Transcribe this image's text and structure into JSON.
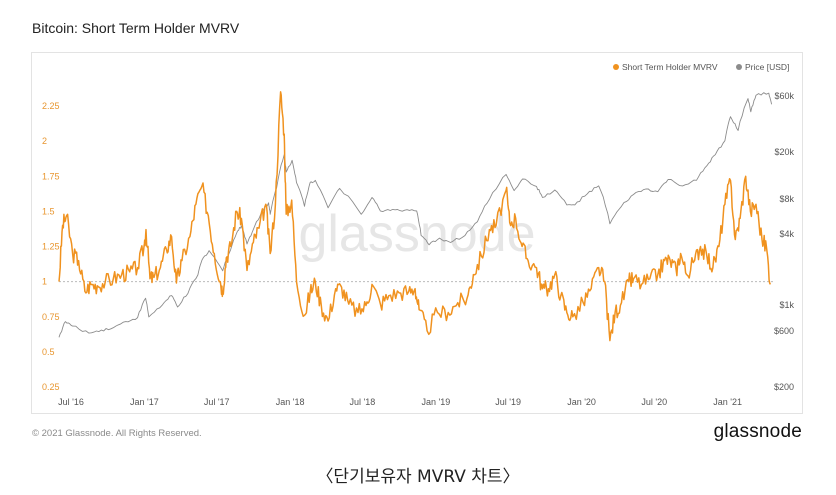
{
  "title": "Bitcoin: Short Term Holder MVRV",
  "footer": {
    "copyright": "© 2021 Glassnode. All Rights Reserved.",
    "brand": "glassnode"
  },
  "watermark": "glassnode",
  "caption": "〈단기보유자 MVRV 차트〉",
  "colors": {
    "mvrv": "#f0921f",
    "price": "#8c8c8c",
    "left_axis": "#e8962f",
    "grid": "#bbbbbb"
  },
  "chart_data": {
    "type": "line",
    "title": "Bitcoin: Short Term Holder MVRV",
    "legend_position": "top-right",
    "x_ticks": [
      "Jul '16",
      "Jan '17",
      "Jul '17",
      "Jan '18",
      "Jul '18",
      "Jan '19",
      "Jul '19",
      "Jan '20",
      "Jul '20",
      "Jan '21"
    ],
    "x_range": [
      "2016-06",
      "2021-04"
    ],
    "y_left": {
      "ticks": [
        "2.25",
        "2",
        "1.75",
        "1.5",
        "1.25",
        "1",
        "0.75",
        "0.5",
        "0.25"
      ],
      "range": [
        0.2,
        2.4
      ],
      "reference_line": 1
    },
    "y_right": {
      "scale": "log",
      "ticks": [
        "$60k",
        "$20k",
        "$8k",
        "$4k",
        "$1k",
        "$600",
        "$200"
      ]
    },
    "series": [
      {
        "name": "Short Term Holder MVRV",
        "axis": "left",
        "points": [
          [
            "2016-06-01",
            1.0
          ],
          [
            "2016-06-10",
            1.4
          ],
          [
            "2016-06-20",
            1.47
          ],
          [
            "2016-07-05",
            1.2
          ],
          [
            "2016-07-20",
            1.15
          ],
          [
            "2016-08-05",
            0.93
          ],
          [
            "2016-08-20",
            0.98
          ],
          [
            "2016-09-05",
            0.97
          ],
          [
            "2016-09-25",
            1.0
          ],
          [
            "2016-10-15",
            1.02
          ],
          [
            "2016-11-05",
            1.05
          ],
          [
            "2016-11-25",
            1.07
          ],
          [
            "2016-12-15",
            1.1
          ],
          [
            "2016-12-31",
            1.25
          ],
          [
            "2017-01-05",
            1.37
          ],
          [
            "2017-01-15",
            1.02
          ],
          [
            "2017-01-25",
            1.03
          ],
          [
            "2017-02-10",
            1.1
          ],
          [
            "2017-02-25",
            1.23
          ],
          [
            "2017-03-10",
            1.32
          ],
          [
            "2017-03-22",
            0.99
          ],
          [
            "2017-04-05",
            1.15
          ],
          [
            "2017-04-25",
            1.32
          ],
          [
            "2017-05-10",
            1.55
          ],
          [
            "2017-05-25",
            1.68
          ],
          [
            "2017-06-10",
            1.47
          ],
          [
            "2017-06-25",
            1.2
          ],
          [
            "2017-07-10",
            1.0
          ],
          [
            "2017-07-16",
            0.93
          ],
          [
            "2017-07-25",
            1.17
          ],
          [
            "2017-08-05",
            1.25
          ],
          [
            "2017-08-20",
            1.5
          ],
          [
            "2017-09-01",
            1.45
          ],
          [
            "2017-09-15",
            1.08
          ],
          [
            "2017-10-01",
            1.28
          ],
          [
            "2017-10-15",
            1.38
          ],
          [
            "2017-11-01",
            1.55
          ],
          [
            "2017-11-12",
            1.2
          ],
          [
            "2017-11-25",
            1.55
          ],
          [
            "2017-12-08",
            2.35
          ],
          [
            "2017-12-17",
            2.05
          ],
          [
            "2017-12-22",
            1.48
          ],
          [
            "2018-01-05",
            1.58
          ],
          [
            "2018-01-17",
            1.0
          ],
          [
            "2018-02-06",
            0.76
          ],
          [
            "2018-02-20",
            0.92
          ],
          [
            "2018-03-05",
            1.0
          ],
          [
            "2018-03-20",
            0.83
          ],
          [
            "2018-04-06",
            0.72
          ],
          [
            "2018-04-25",
            0.95
          ],
          [
            "2018-05-10",
            0.96
          ],
          [
            "2018-05-28",
            0.84
          ],
          [
            "2018-06-20",
            0.78
          ],
          [
            "2018-07-10",
            0.83
          ],
          [
            "2018-07-25",
            0.98
          ],
          [
            "2018-08-15",
            0.84
          ],
          [
            "2018-09-05",
            0.9
          ],
          [
            "2018-10-01",
            0.92
          ],
          [
            "2018-10-25",
            0.93
          ],
          [
            "2018-11-10",
            0.95
          ],
          [
            "2018-11-20",
            0.8
          ],
          [
            "2018-12-10",
            0.65
          ],
          [
            "2019-01-05",
            0.78
          ],
          [
            "2019-02-01",
            0.78
          ],
          [
            "2019-02-25",
            0.85
          ],
          [
            "2019-03-20",
            0.88
          ],
          [
            "2019-04-05",
            1.05
          ],
          [
            "2019-04-25",
            1.18
          ],
          [
            "2019-05-15",
            1.37
          ],
          [
            "2019-06-01",
            1.4
          ],
          [
            "2019-06-26",
            1.65
          ],
          [
            "2019-07-05",
            1.42
          ],
          [
            "2019-07-20",
            1.45
          ],
          [
            "2019-08-05",
            1.25
          ],
          [
            "2019-08-20",
            1.15
          ],
          [
            "2019-09-10",
            1.1
          ],
          [
            "2019-09-25",
            0.95
          ],
          [
            "2019-10-10",
            0.95
          ],
          [
            "2019-10-26",
            1.05
          ],
          [
            "2019-11-10",
            0.9
          ],
          [
            "2019-11-25",
            0.78
          ],
          [
            "2019-12-10",
            0.75
          ],
          [
            "2020-01-05",
            0.85
          ],
          [
            "2020-01-25",
            0.95
          ],
          [
            "2020-02-13",
            1.1
          ],
          [
            "2020-02-28",
            1.0
          ],
          [
            "2020-03-12",
            0.58
          ],
          [
            "2020-03-25",
            0.78
          ],
          [
            "2020-04-10",
            0.85
          ],
          [
            "2020-04-28",
            1.0
          ],
          [
            "2020-05-10",
            1.02
          ],
          [
            "2020-05-30",
            0.98
          ],
          [
            "2020-06-20",
            1.02
          ],
          [
            "2020-07-10",
            1.05
          ],
          [
            "2020-07-27",
            1.15
          ],
          [
            "2020-08-10",
            1.15
          ],
          [
            "2020-08-25",
            1.08
          ],
          [
            "2020-09-05",
            1.2
          ],
          [
            "2020-09-20",
            1.05
          ],
          [
            "2020-10-10",
            1.15
          ],
          [
            "2020-10-25",
            1.25
          ],
          [
            "2020-11-10",
            1.18
          ],
          [
            "2020-11-25",
            1.1
          ],
          [
            "2020-12-10",
            1.25
          ],
          [
            "2020-12-25",
            1.55
          ],
          [
            "2021-01-08",
            1.72
          ],
          [
            "2021-01-20",
            1.3
          ],
          [
            "2021-02-01",
            1.45
          ],
          [
            "2021-02-15",
            1.75
          ],
          [
            "2021-02-27",
            1.5
          ],
          [
            "2021-03-13",
            1.55
          ],
          [
            "2021-03-28",
            1.3
          ],
          [
            "2021-04-08",
            1.25
          ],
          [
            "2021-04-18",
            0.98
          ]
        ]
      },
      {
        "name": "Price [USD]",
        "axis": "right",
        "points": [
          [
            "2016-06-01",
            530
          ],
          [
            "2016-06-17",
            720
          ],
          [
            "2016-07-05",
            660
          ],
          [
            "2016-08-15",
            575
          ],
          [
            "2016-09-15",
            610
          ],
          [
            "2016-10-15",
            640
          ],
          [
            "2016-11-15",
            720
          ],
          [
            "2016-12-15",
            780
          ],
          [
            "2017-01-04",
            1140
          ],
          [
            "2017-01-12",
            790
          ],
          [
            "2017-02-15",
            1000
          ],
          [
            "2017-03-10",
            1200
          ],
          [
            "2017-03-25",
            960
          ],
          [
            "2017-04-20",
            1250
          ],
          [
            "2017-05-15",
            1800
          ],
          [
            "2017-05-25",
            2400
          ],
          [
            "2017-06-12",
            2900
          ],
          [
            "2017-07-16",
            1950
          ],
          [
            "2017-08-01",
            2750
          ],
          [
            "2017-08-20",
            4100
          ],
          [
            "2017-09-01",
            4700
          ],
          [
            "2017-09-15",
            3300
          ],
          [
            "2017-10-01",
            4400
          ],
          [
            "2017-10-20",
            6000
          ],
          [
            "2017-11-08",
            7400
          ],
          [
            "2017-11-12",
            5900
          ],
          [
            "2017-11-28",
            9900
          ],
          [
            "2017-12-17",
            19000
          ],
          [
            "2017-12-22",
            13500
          ],
          [
            "2018-01-06",
            17000
          ],
          [
            "2018-01-17",
            11000
          ],
          [
            "2018-02-06",
            6900
          ],
          [
            "2018-02-20",
            11000
          ],
          [
            "2018-03-05",
            11500
          ],
          [
            "2018-04-06",
            6700
          ],
          [
            "2018-05-05",
            9800
          ],
          [
            "2018-06-28",
            5900
          ],
          [
            "2018-07-25",
            8200
          ],
          [
            "2018-08-15",
            6300
          ],
          [
            "2018-09-15",
            6500
          ],
          [
            "2018-10-15",
            6400
          ],
          [
            "2018-11-14",
            6300
          ],
          [
            "2018-11-25",
            3900
          ],
          [
            "2018-12-15",
            3250
          ],
          [
            "2019-01-10",
            3700
          ],
          [
            "2019-02-07",
            3400
          ],
          [
            "2019-03-15",
            3900
          ],
          [
            "2019-04-15",
            5100
          ],
          [
            "2019-05-15",
            7900
          ],
          [
            "2019-06-26",
            12900
          ],
          [
            "2019-07-16",
            9400
          ],
          [
            "2019-08-06",
            11800
          ],
          [
            "2019-09-10",
            10200
          ],
          [
            "2019-09-25",
            8200
          ],
          [
            "2019-10-26",
            9500
          ],
          [
            "2019-11-25",
            7100
          ],
          [
            "2019-12-15",
            7100
          ],
          [
            "2020-01-15",
            8800
          ],
          [
            "2020-02-13",
            10300
          ],
          [
            "2020-03-12",
            4900
          ],
          [
            "2020-04-10",
            6900
          ],
          [
            "2020-05-10",
            8700
          ],
          [
            "2020-06-10",
            9700
          ],
          [
            "2020-07-10",
            9200
          ],
          [
            "2020-08-05",
            11700
          ],
          [
            "2020-09-10",
            10300
          ],
          [
            "2020-10-15",
            11500
          ],
          [
            "2020-11-10",
            15300
          ],
          [
            "2020-12-01",
            19000
          ],
          [
            "2020-12-25",
            25000
          ],
          [
            "2021-01-08",
            40000
          ],
          [
            "2021-01-27",
            30500
          ],
          [
            "2021-02-21",
            57000
          ],
          [
            "2021-02-28",
            44000
          ],
          [
            "2021-03-13",
            61000
          ],
          [
            "2021-04-14",
            63500
          ],
          [
            "2021-04-21",
            51000
          ]
        ]
      }
    ]
  }
}
